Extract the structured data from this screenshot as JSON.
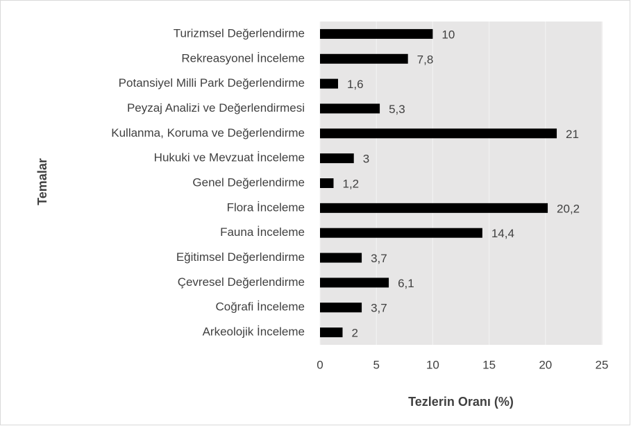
{
  "chart_data": {
    "type": "bar",
    "orientation": "horizontal",
    "categories": [
      "Turizmsel Değerlendirme",
      "Rekreasyonel İnceleme",
      "Potansiyel Milli Park Değerlendirme",
      "Peyzaj Analizi ve Değerlendirmesi",
      "Kullanma, Koruma ve Değerlendirme",
      "Hukuki ve Mevzuat İnceleme",
      "Genel Değerlendirme",
      "Flora İnceleme",
      "Fauna İnceleme",
      "Eğitimsel Değerlendirme",
      "Çevresel Değerlendirme",
      "Coğrafi İnceleme",
      "Arkeolojik İnceleme"
    ],
    "values": [
      10,
      7.8,
      1.6,
      5.3,
      21,
      3,
      1.2,
      20.2,
      14.4,
      3.7,
      6.1,
      3.7,
      2
    ],
    "value_labels": [
      "10",
      "7,8",
      "1,6",
      "5,3",
      "21",
      "3",
      "1,2",
      "20,2",
      "14,4",
      "3,7",
      "6,1",
      "3,7",
      "2"
    ],
    "color": "#000000",
    "xlabel": "Tezlerin Oranı (%)",
    "ylabel": "Temalar",
    "xlim": [
      0,
      25
    ],
    "xticks": [
      0,
      5,
      10,
      15,
      20,
      25
    ],
    "grid": true
  }
}
